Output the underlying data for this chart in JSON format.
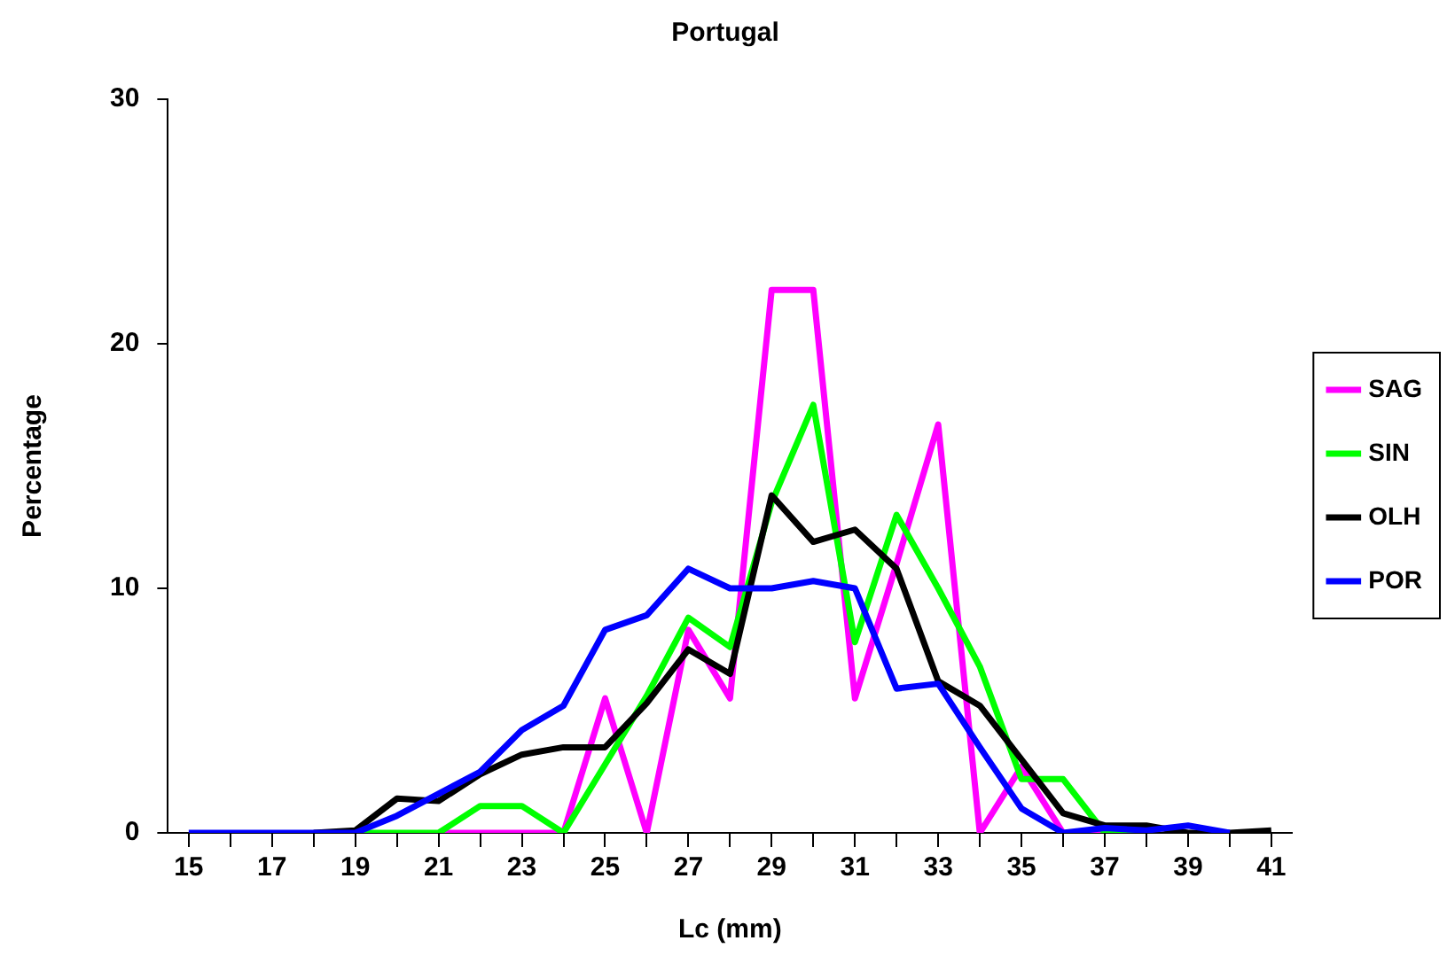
{
  "chart_data": {
    "type": "line",
    "title": "Portugal",
    "xlabel": "Lc (mm)",
    "ylabel": "Percentage",
    "categories": [
      "15",
      null,
      "17",
      null,
      "19",
      null,
      "21",
      null,
      "23",
      null,
      "25",
      null,
      "27",
      null,
      "29",
      null,
      "31",
      null,
      "33",
      null,
      "35",
      null,
      "37",
      null,
      "39",
      null,
      "41"
    ],
    "series": [
      {
        "name": "SAG",
        "color": "#ff00ff",
        "values": [
          null,
          null,
          null,
          null,
          null,
          null,
          0,
          0,
          0,
          0,
          5.5,
          0,
          8.3,
          5.5,
          22.2,
          22.2,
          5.5,
          11,
          16.7,
          0,
          2.7,
          0,
          0,
          null,
          null,
          null,
          null
        ]
      },
      {
        "name": "SIN",
        "color": "#00ff00",
        "values": [
          null,
          null,
          null,
          null,
          0,
          0,
          0,
          1.1,
          1.1,
          0,
          2.8,
          5.6,
          8.8,
          7.6,
          13.5,
          17.5,
          7.8,
          13,
          10,
          6.8,
          2.2,
          2.2,
          0,
          0,
          null,
          null,
          null
        ]
      },
      {
        "name": "OLH",
        "color": "#000000",
        "values": [
          null,
          null,
          null,
          0,
          0.1,
          1.4,
          1.3,
          2.4,
          3.2,
          3.5,
          3.5,
          5.3,
          7.5,
          6.5,
          13.8,
          11.9,
          12.4,
          10.8,
          6.2,
          5.2,
          3,
          0.8,
          0.3,
          0.3,
          0,
          0,
          0.1
        ]
      },
      {
        "name": "POR",
        "color": "#0000ff",
        "values": [
          0,
          0,
          0,
          0,
          0,
          0.7,
          1.6,
          2.5,
          4.2,
          5.2,
          8.3,
          8.9,
          10.8,
          10,
          10,
          10.3,
          10,
          5.9,
          6.1,
          3.5,
          1,
          0,
          0.2,
          0.1,
          0.3,
          0,
          null
        ]
      }
    ],
    "ylim": [
      0,
      30
    ],
    "yticks": [
      0,
      10,
      20,
      30
    ],
    "grid": false,
    "legend": "right",
    "marker": "none",
    "line_style": "solid"
  }
}
